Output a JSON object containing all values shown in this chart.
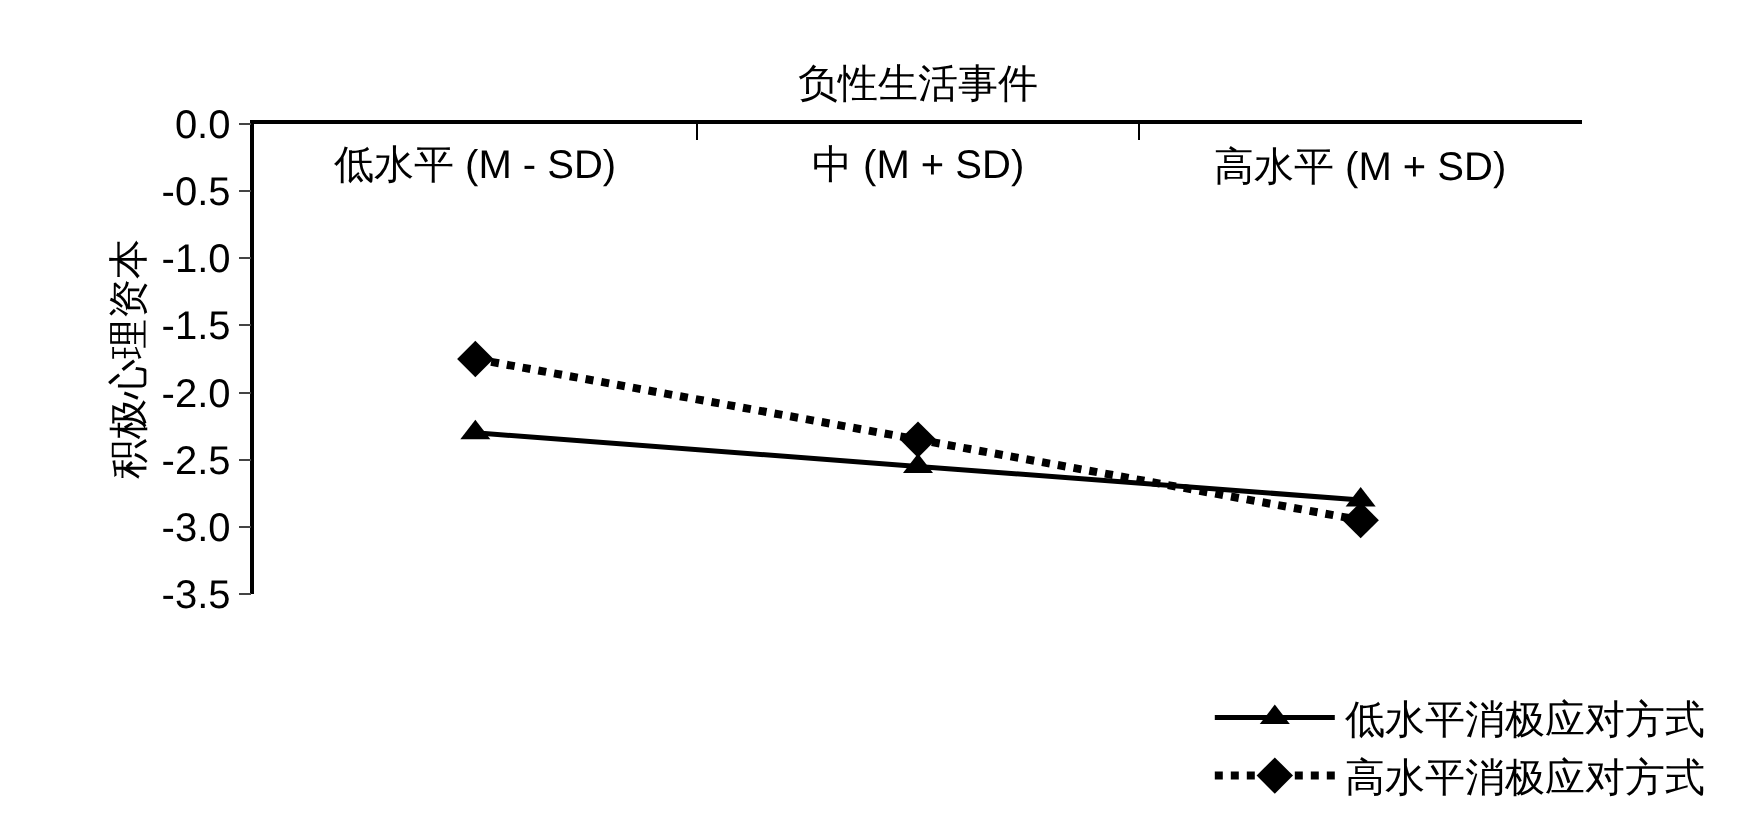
{
  "chart_data": {
    "type": "line",
    "xlabel": "负性生活事件",
    "ylabel": "积极心理资本",
    "categories": [
      "低水平 (M - SD)",
      "中 (M + SD)",
      "高水平 (M + SD)"
    ],
    "series": [
      {
        "name": "低水平消极应对方式",
        "color": "#000000",
        "values": [
          -2.3,
          -2.55,
          -2.8
        ],
        "marker": "triangle",
        "line_style": "solid"
      },
      {
        "name": "高水平消极应对方式",
        "color": "#000000",
        "values": [
          -1.75,
          -2.35,
          -2.95
        ],
        "marker": "diamond",
        "line_style": "dotted"
      }
    ],
    "ylim": [
      -3.5,
      0
    ],
    "yticks": [
      {
        "value": 0,
        "label": "0.0"
      },
      -0.5,
      {
        "value": -1,
        "label": "-1.0"
      },
      -1.5,
      {
        "value": -2,
        "label": "-2.0"
      },
      -2.5,
      {
        "value": -3,
        "label": "-3.0"
      },
      -3.5
    ],
    "grid": false,
    "legend": "bottom right"
  }
}
